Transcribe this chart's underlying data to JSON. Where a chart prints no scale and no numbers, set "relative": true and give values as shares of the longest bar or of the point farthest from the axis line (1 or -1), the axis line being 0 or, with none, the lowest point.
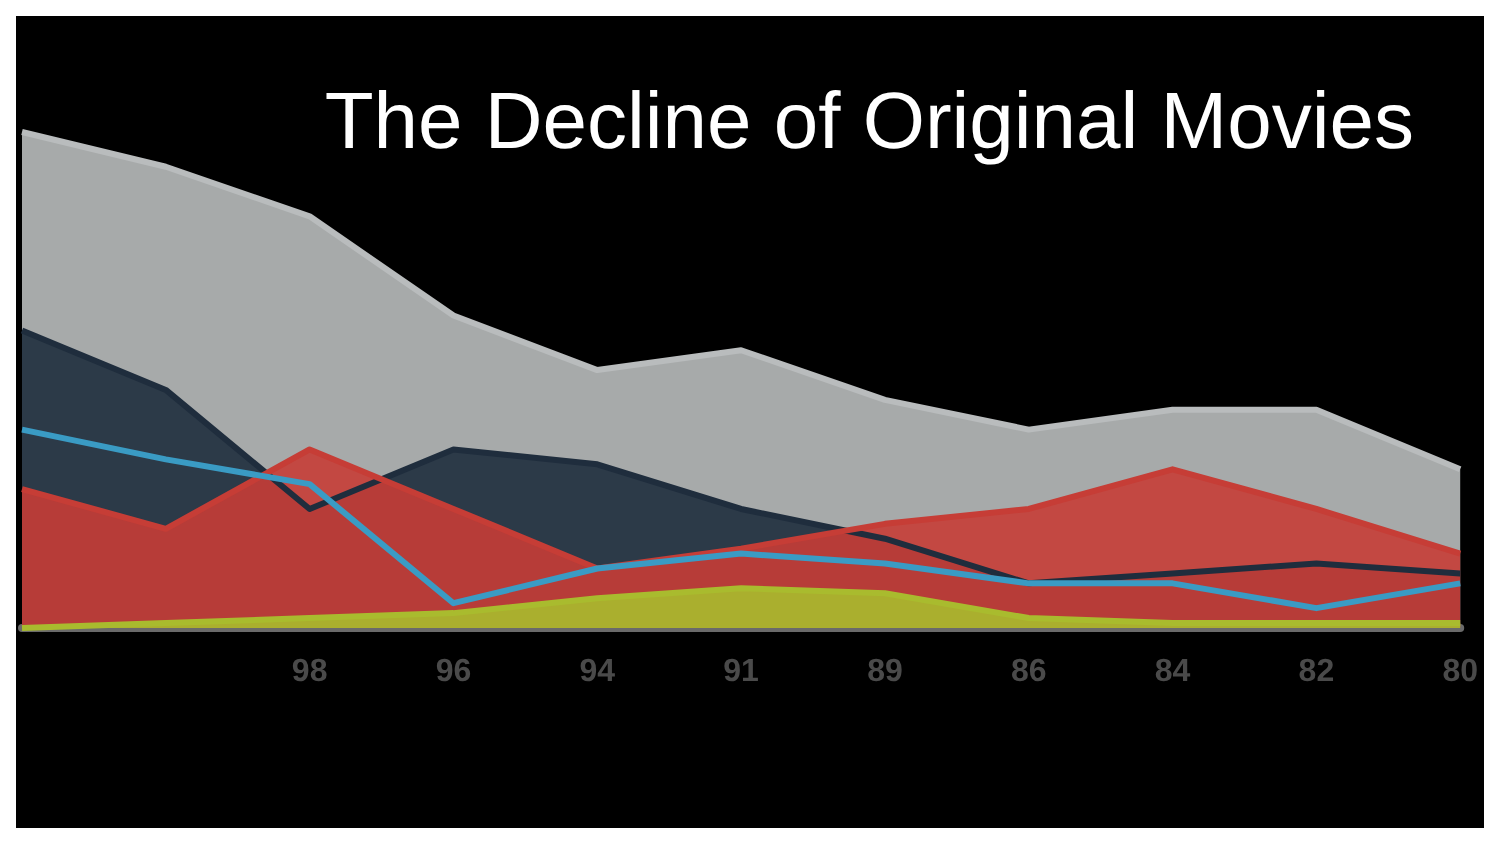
{
  "chart_data": {
    "type": "area",
    "title": "The Decline of Original Movies",
    "relative": true,
    "marker": "none",
    "categories": [
      null,
      null,
      "98",
      "96",
      "94",
      "91",
      "89",
      "86",
      "84",
      "82",
      "80"
    ],
    "series": [
      {
        "color": "#b9bcbd",
        "values": [
          1,
          0.93,
          0.83,
          0.63,
          0.52,
          0.56,
          0.46,
          0.4,
          0.44,
          0.44,
          0.32
        ]
      },
      {
        "color": "#1f2d3d",
        "values": [
          0.6,
          0.48,
          0.24,
          0.36,
          0.33,
          0.24,
          0.18,
          0.09,
          0.11,
          0.13,
          0.11
        ]
      },
      {
        "color": "#c63d36",
        "values": [
          0.28,
          0.2,
          0.36,
          0.24,
          0.12,
          0.16,
          0.21,
          0.24,
          0.32,
          0.24,
          0.15
        ]
      },
      {
        "color": "#a9bb2e",
        "values": [
          0,
          0.01,
          0.02,
          0.03,
          0.06,
          0.08,
          0.07,
          0.02,
          0.01,
          0.01,
          0.01
        ]
      },
      {
        "type": "line",
        "color": "#3a9bc4",
        "values": [
          0.4,
          0.34,
          0.29,
          0.05,
          0.12,
          0.15,
          0.13,
          0.09,
          0.09,
          0.04,
          0.09
        ]
      }
    ]
  }
}
